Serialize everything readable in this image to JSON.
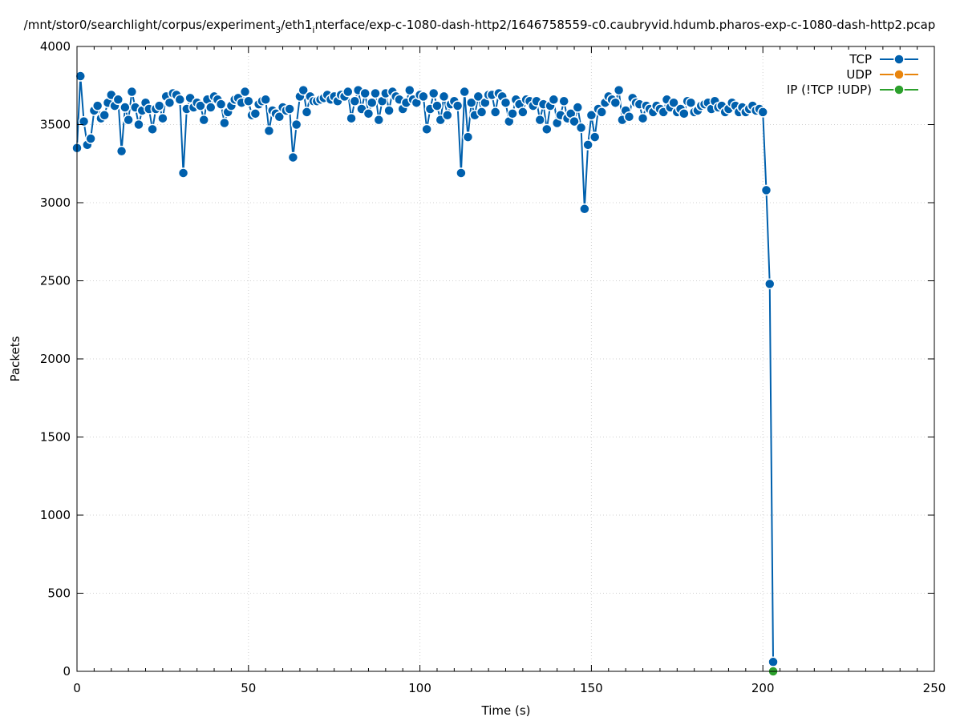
{
  "chart_data": {
    "type": "line",
    "title": "/mnt/stor0/searchlight/corpus/experiment_3/eth1_interface/exp-c-1080-dash-http2/1646758559-c0.caubryvid.hdumb.pharos-exp-c-1080-dash-http2.pcap",
    "title_parts": {
      "a": "/mnt/stor0/searchlight/corpus/experiment",
      "sub1": "3",
      "b": "/eth1",
      "sub2": "i",
      "c": "nterface/exp-c-1080-dash-http2/1646758559-c0.caubryvid.hdumb.pharos-exp-c-1080-dash-http2.pcap"
    },
    "xlabel": "Time (s)",
    "ylabel": "Packets",
    "xlim": [
      0,
      250
    ],
    "ylim": [
      0,
      4000
    ],
    "xticks": [
      "0",
      "50",
      "100",
      "150",
      "200",
      "250"
    ],
    "yticks": [
      "0",
      "500",
      "1000",
      "1500",
      "2000",
      "2500",
      "3000",
      "3500",
      "4000"
    ],
    "grid": true,
    "legend_position": "top-right",
    "series": [
      {
        "name": "TCP",
        "color": "#0060ad",
        "x": [
          0,
          1,
          2,
          3,
          4,
          5,
          6,
          7,
          8,
          9,
          10,
          11,
          12,
          13,
          14,
          15,
          16,
          17,
          18,
          19,
          20,
          21,
          22,
          23,
          24,
          25,
          26,
          27,
          28,
          29,
          30,
          31,
          32,
          33,
          34,
          35,
          36,
          37,
          38,
          39,
          40,
          41,
          42,
          43,
          44,
          45,
          46,
          47,
          48,
          49,
          50,
          51,
          52,
          53,
          54,
          55,
          56,
          57,
          58,
          59,
          60,
          61,
          62,
          63,
          64,
          65,
          66,
          67,
          68,
          69,
          70,
          71,
          72,
          73,
          74,
          75,
          76,
          77,
          78,
          79,
          80,
          81,
          82,
          83,
          84,
          85,
          86,
          87,
          88,
          89,
          90,
          91,
          92,
          93,
          94,
          95,
          96,
          97,
          98,
          99,
          100,
          101,
          102,
          103,
          104,
          105,
          106,
          107,
          108,
          109,
          110,
          111,
          112,
          113,
          114,
          115,
          116,
          117,
          118,
          119,
          120,
          121,
          122,
          123,
          124,
          125,
          126,
          127,
          128,
          129,
          130,
          131,
          132,
          133,
          134,
          135,
          136,
          137,
          138,
          139,
          140,
          141,
          142,
          143,
          144,
          145,
          146,
          147,
          148,
          149,
          150,
          151,
          152,
          153,
          154,
          155,
          156,
          157,
          158,
          159,
          160,
          161,
          162,
          163,
          164,
          165,
          166,
          167,
          168,
          169,
          170,
          171,
          172,
          173,
          174,
          175,
          176,
          177,
          178,
          179,
          180,
          181,
          182,
          183,
          184,
          185,
          186,
          187,
          188,
          189,
          190,
          191,
          192,
          193,
          194,
          195,
          196,
          197,
          198,
          199,
          200,
          201,
          202,
          203
        ],
        "values": [
          3350,
          3810,
          3520,
          3370,
          3410,
          3590,
          3620,
          3540,
          3560,
          3640,
          3690,
          3620,
          3660,
          3330,
          3610,
          3530,
          3710,
          3610,
          3500,
          3590,
          3640,
          3600,
          3470,
          3600,
          3620,
          3540,
          3680,
          3640,
          3700,
          3690,
          3660,
          3190,
          3600,
          3670,
          3610,
          3640,
          3620,
          3530,
          3660,
          3610,
          3680,
          3660,
          3630,
          3510,
          3580,
          3620,
          3660,
          3670,
          3640,
          3710,
          3650,
          3560,
          3570,
          3630,
          3650,
          3660,
          3460,
          3590,
          3570,
          3550,
          3610,
          3590,
          3600,
          3290,
          3500,
          3680,
          3720,
          3580,
          3680,
          3650,
          3650,
          3660,
          3670,
          3690,
          3660,
          3680,
          3650,
          3690,
          3680,
          3710,
          3540,
          3650,
          3720,
          3600,
          3700,
          3570,
          3640,
          3700,
          3530,
          3650,
          3700,
          3590,
          3710,
          3680,
          3660,
          3600,
          3640,
          3720,
          3660,
          3640,
          3690,
          3680,
          3470,
          3600,
          3700,
          3620,
          3530,
          3680,
          3560,
          3630,
          3650,
          3620,
          3190,
          3710,
          3420,
          3640,
          3560,
          3680,
          3580,
          3640,
          3690,
          3690,
          3580,
          3700,
          3680,
          3640,
          3520,
          3570,
          3660,
          3630,
          3580,
          3660,
          3650,
          3620,
          3650,
          3530,
          3630,
          3470,
          3620,
          3660,
          3510,
          3560,
          3650,
          3540,
          3570,
          3520,
          3610,
          3480,
          2960,
          3370,
          3560,
          3420,
          3600,
          3580,
          3640,
          3680,
          3660,
          3640,
          3720,
          3530,
          3590,
          3550,
          3670,
          3640,
          3630,
          3540,
          3620,
          3600,
          3580,
          3620,
          3600,
          3580,
          3660,
          3610,
          3640,
          3580,
          3600,
          3570,
          3650,
          3640,
          3580,
          3590,
          3620,
          3630,
          3640,
          3600,
          3650,
          3610,
          3620,
          3580,
          3600,
          3640,
          3620,
          3580,
          3610,
          3580,
          3600,
          3620,
          3590,
          3600,
          3580,
          3080,
          2480,
          60
        ]
      },
      {
        "name": "UDP",
        "color": "#e8840c",
        "x": [],
        "values": []
      },
      {
        "name": "IP (!TCP  !UDP)",
        "color": "#2ca02c",
        "x": [
          203
        ],
        "values": [
          0
        ]
      }
    ]
  }
}
